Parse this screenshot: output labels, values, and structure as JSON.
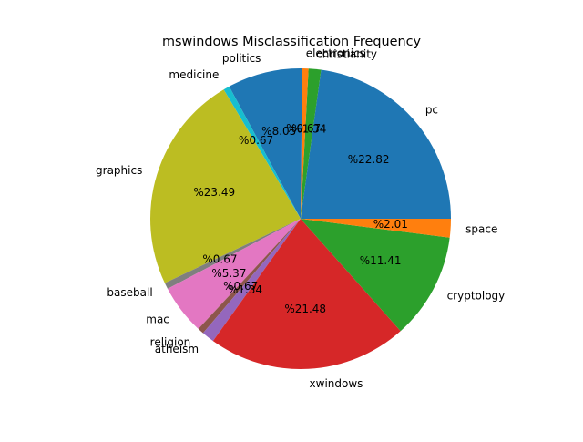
{
  "chart_data": {
    "type": "pie",
    "title": "mswindows Misclassification Frequency",
    "slices": [
      {
        "label": "pc",
        "value": 22.82,
        "pct_label": "%22.82",
        "color": "#1f77b4"
      },
      {
        "label": "christianity",
        "value": 1.34,
        "pct_label": "%1.34",
        "color": "#2ca02c"
      },
      {
        "label": "electronics",
        "value": 0.67,
        "pct_label": "%0.67",
        "color": "#ff7f0e"
      },
      {
        "label": "politics",
        "value": 8.05,
        "pct_label": "%8.05",
        "color": "#1f77b4"
      },
      {
        "label": "medicine",
        "value": 0.67,
        "pct_label": "%0.67",
        "color": "#17becf"
      },
      {
        "label": "graphics",
        "value": 23.49,
        "pct_label": "%23.49",
        "color": "#bcbd22"
      },
      {
        "label": "baseball",
        "value": 0.67,
        "pct_label": "%0.67",
        "color": "#7f7f7f"
      },
      {
        "label": "mac",
        "value": 5.37,
        "pct_label": "%5.37",
        "color": "#e377c2"
      },
      {
        "label": "religion",
        "value": 0.67,
        "pct_label": "%0.67",
        "color": "#8c564b"
      },
      {
        "label": "atheism",
        "value": 1.34,
        "pct_label": "%1.34",
        "color": "#9467bd"
      },
      {
        "label": "xwindows",
        "value": 21.48,
        "pct_label": "%21.48",
        "color": "#d62728"
      },
      {
        "label": "cryptology",
        "value": 11.41,
        "pct_label": "%11.41",
        "color": "#2ca02c"
      },
      {
        "label": "space",
        "value": 2.01,
        "pct_label": "%2.01",
        "color": "#ff7f0e"
      }
    ]
  }
}
